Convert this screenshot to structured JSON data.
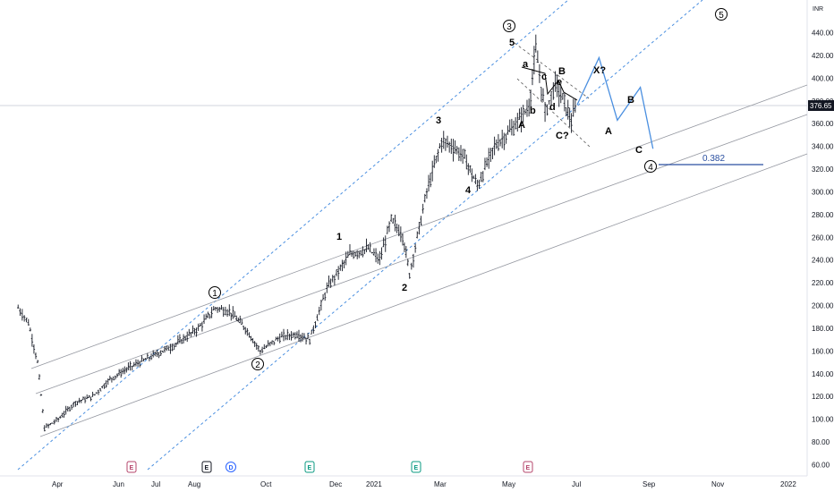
{
  "chart_data": {
    "type": "ohlc",
    "currency_label": "INR",
    "current_price": "376.65",
    "y_axis_ticks": [
      "440.00",
      "420.00",
      "400.00",
      "380.00",
      "360.00",
      "340.00",
      "320.00",
      "300.00",
      "280.00",
      "260.00",
      "240.00",
      "220.00",
      "200.00",
      "180.00",
      "160.00",
      "140.00",
      "120.00",
      "100.00",
      "80.00",
      "60.00"
    ],
    "x_axis_ticks": [
      "Apr",
      "Jun",
      "Jul",
      "Aug",
      "Oct",
      "Dec",
      "2021",
      "Mar",
      "May",
      "Jul",
      "Sep",
      "Nov",
      "2022"
    ],
    "ylim": [
      60,
      450
    ],
    "price_path": [
      {
        "date": "2020-03-01",
        "close": 198
      },
      {
        "date": "2020-03-10",
        "close": 185
      },
      {
        "date": "2020-03-18",
        "close": 150
      },
      {
        "date": "2020-03-24",
        "close": 92
      },
      {
        "date": "2020-04-05",
        "close": 100
      },
      {
        "date": "2020-04-20",
        "close": 115
      },
      {
        "date": "2020-05-05",
        "close": 120
      },
      {
        "date": "2020-05-20",
        "close": 135
      },
      {
        "date": "2020-06-05",
        "close": 145
      },
      {
        "date": "2020-06-25",
        "close": 155
      },
      {
        "date": "2020-07-15",
        "close": 165
      },
      {
        "date": "2020-08-05",
        "close": 180
      },
      {
        "date": "2020-08-20",
        "close": 198
      },
      {
        "date": "2020-09-01",
        "close": 195
      },
      {
        "date": "2020-09-15",
        "close": 180
      },
      {
        "date": "2020-09-28",
        "close": 160
      },
      {
        "date": "2020-10-15",
        "close": 172
      },
      {
        "date": "2020-10-30",
        "close": 175
      },
      {
        "date": "2020-11-10",
        "close": 170
      },
      {
        "date": "2020-11-25",
        "close": 215
      },
      {
        "date": "2020-12-15",
        "close": 245
      },
      {
        "date": "2020-12-31",
        "close": 250
      },
      {
        "date": "2021-01-10",
        "close": 240
      },
      {
        "date": "2021-01-20",
        "close": 275
      },
      {
        "date": "2021-01-30",
        "close": 262
      },
      {
        "date": "2021-02-05",
        "close": 228
      },
      {
        "date": "2021-02-20",
        "close": 300
      },
      {
        "date": "2021-03-05",
        "close": 345
      },
      {
        "date": "2021-03-15",
        "close": 340
      },
      {
        "date": "2021-03-25",
        "close": 330
      },
      {
        "date": "2021-04-05",
        "close": 305
      },
      {
        "date": "2021-04-20",
        "close": 340
      },
      {
        "date": "2021-05-05",
        "close": 355
      },
      {
        "date": "2021-05-20",
        "close": 375
      },
      {
        "date": "2021-05-26",
        "close": 425
      },
      {
        "date": "2021-06-03",
        "close": 370
      },
      {
        "date": "2021-06-12",
        "close": 395
      },
      {
        "date": "2021-06-20",
        "close": 378
      },
      {
        "date": "2021-06-26",
        "close": 362
      },
      {
        "date": "2021-07-01",
        "close": 376.65
      }
    ],
    "projection": [
      {
        "date": "2021-07-01",
        "value": 376.65
      },
      {
        "date": "2021-07-20",
        "value": 418
      },
      {
        "date": "2021-08-05",
        "value": 363
      },
      {
        "date": "2021-08-25",
        "value": 392
      },
      {
        "date": "2021-09-05",
        "value": 338
      }
    ],
    "fib_level": {
      "label": "0.382",
      "value": 322
    },
    "wave_labels": [
      "1",
      "2",
      "3",
      "4",
      "5",
      "A",
      "B",
      "C",
      "a",
      "b",
      "c",
      "d",
      "e",
      "X?",
      "A",
      "B",
      "C",
      "C?"
    ],
    "circled_labels": [
      "1",
      "2",
      "3",
      "4",
      "5"
    ],
    "events": [
      "E",
      "E",
      "D",
      "E",
      "E",
      "E"
    ]
  }
}
